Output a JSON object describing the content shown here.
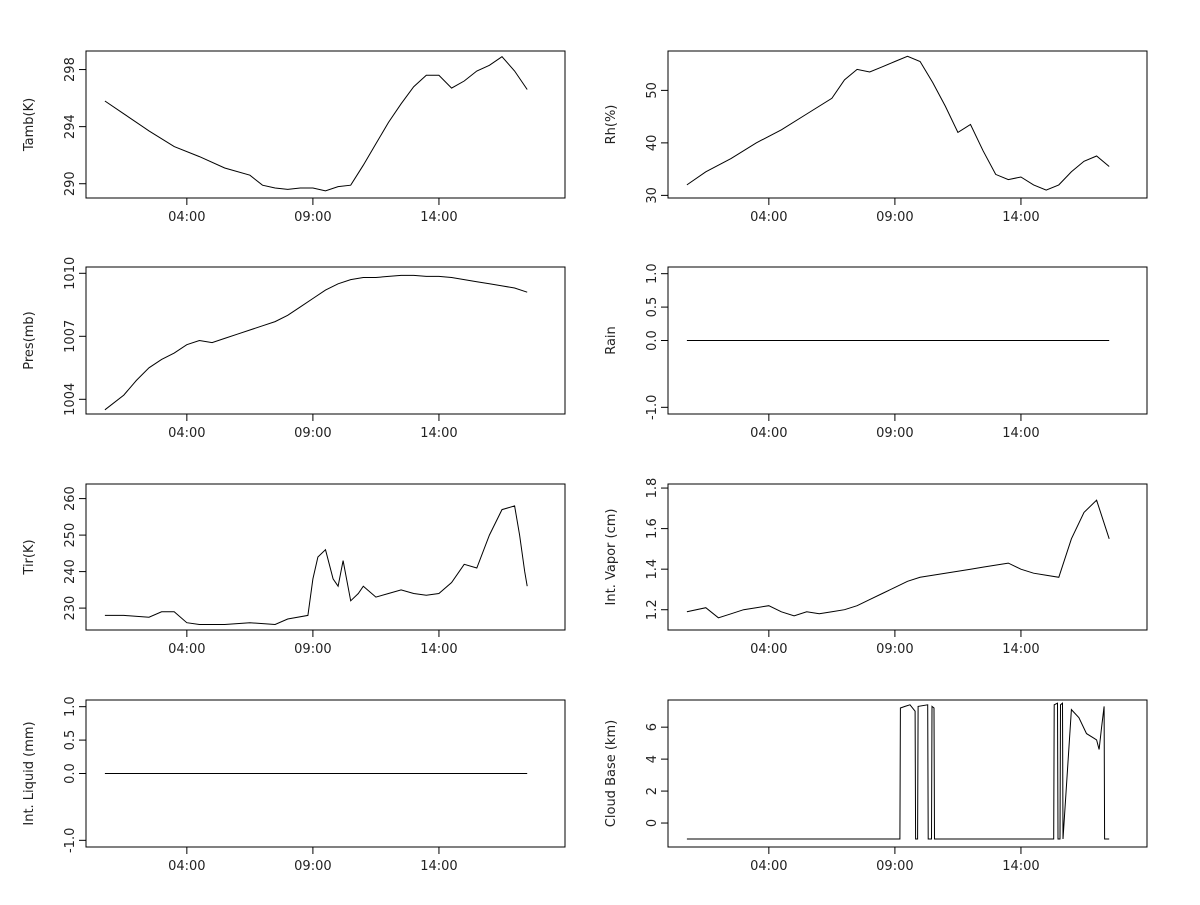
{
  "chart_data": [
    {
      "type": "line",
      "ylabel": "Tamb(K)",
      "xticks": [
        "04:00",
        "09:00",
        "14:00"
      ],
      "xlim": [
        0.0,
        19.0
      ],
      "ylim": [
        289.0,
        299.3
      ],
      "yticks": [
        290,
        294,
        298
      ],
      "series": [
        {
          "x": [
            0.75,
            1.5,
            2.5,
            3.5,
            4.5,
            5.5,
            6.5,
            7.0,
            7.5,
            8.0,
            8.5,
            9.0,
            9.5,
            10.0,
            10.5,
            11.0,
            11.5,
            12.0,
            12.5,
            13.0,
            13.5,
            14.0,
            14.5,
            15.0,
            15.5,
            16.0,
            16.5,
            17.0,
            17.5
          ],
          "y": [
            295.8,
            294.9,
            293.7,
            292.6,
            291.9,
            291.1,
            290.6,
            289.9,
            289.7,
            289.6,
            289.7,
            289.7,
            289.5,
            289.8,
            289.9,
            291.3,
            292.8,
            294.3,
            295.6,
            296.8,
            297.6,
            297.6,
            296.7,
            297.2,
            297.9,
            298.3,
            298.9,
            297.9,
            296.6
          ]
        }
      ]
    },
    {
      "type": "line",
      "ylabel": "Rh(%)",
      "xticks": [
        "04:00",
        "09:00",
        "14:00"
      ],
      "xlim": [
        0.0,
        19.0
      ],
      "ylim": [
        29.5,
        57.5
      ],
      "yticks": [
        30,
        40,
        50
      ],
      "series": [
        {
          "x": [
            0.75,
            1.5,
            2.5,
            3.5,
            4.5,
            5.5,
            6.5,
            7.0,
            7.5,
            8.0,
            8.5,
            9.0,
            9.5,
            10.0,
            10.5,
            11.0,
            11.5,
            12.0,
            12.5,
            13.0,
            13.5,
            14.0,
            14.5,
            15.0,
            15.5,
            16.0,
            16.5,
            17.0,
            17.5
          ],
          "y": [
            32.0,
            34.5,
            37.0,
            40.0,
            42.5,
            45.5,
            48.5,
            52.0,
            54.0,
            53.5,
            54.5,
            55.5,
            56.5,
            55.5,
            51.5,
            47.0,
            42.0,
            43.5,
            38.5,
            34.0,
            33.0,
            33.5,
            32.0,
            31.0,
            32.0,
            34.5,
            36.5,
            37.5,
            35.5
          ]
        }
      ]
    },
    {
      "type": "line",
      "ylabel": "Pres(mb)",
      "xticks": [
        "04:00",
        "09:00",
        "14:00"
      ],
      "xlim": [
        0.0,
        19.0
      ],
      "ylim": [
        1003.3,
        1010.3
      ],
      "yticks": [
        1004,
        1007,
        1010
      ],
      "series": [
        {
          "x": [
            0.75,
            1.5,
            2.0,
            2.5,
            3.0,
            3.5,
            4.0,
            4.5,
            5.0,
            5.5,
            6.0,
            6.5,
            7.0,
            7.5,
            8.0,
            8.5,
            9.0,
            9.5,
            10.0,
            10.5,
            11.0,
            11.5,
            12.0,
            12.5,
            13.0,
            13.5,
            14.0,
            14.5,
            15.0,
            15.5,
            16.0,
            16.5,
            17.0,
            17.5
          ],
          "y": [
            1003.5,
            1004.2,
            1004.9,
            1005.5,
            1005.9,
            1006.2,
            1006.6,
            1006.8,
            1006.7,
            1006.9,
            1007.1,
            1007.3,
            1007.5,
            1007.7,
            1008.0,
            1008.4,
            1008.8,
            1009.2,
            1009.5,
            1009.7,
            1009.8,
            1009.8,
            1009.85,
            1009.9,
            1009.9,
            1009.85,
            1009.85,
            1009.8,
            1009.7,
            1009.6,
            1009.5,
            1009.4,
            1009.3,
            1009.1
          ]
        }
      ]
    },
    {
      "type": "line",
      "ylabel": "Rain",
      "xticks": [
        "04:00",
        "09:00",
        "14:00"
      ],
      "xlim": [
        0.0,
        19.0
      ],
      "ylim": [
        -1.1,
        1.1
      ],
      "yticks": [
        -1.0,
        0.0,
        0.5,
        1.0
      ],
      "ytick_labels": [
        "-1.0",
        "0.0",
        "0.5",
        "1.0"
      ],
      "series": [
        {
          "x": [
            0.75,
            17.5
          ],
          "y": [
            0.0,
            0.0
          ]
        }
      ]
    },
    {
      "type": "line",
      "ylabel": "Tir(K)",
      "xticks": [
        "04:00",
        "09:00",
        "14:00"
      ],
      "xlim": [
        0.0,
        19.0
      ],
      "ylim": [
        224.0,
        264.0
      ],
      "yticks": [
        230,
        240,
        250,
        260
      ],
      "series": [
        {
          "x": [
            0.75,
            1.5,
            2.5,
            3.0,
            3.5,
            4.0,
            4.5,
            5.5,
            6.5,
            7.5,
            8.0,
            8.8,
            9.0,
            9.2,
            9.5,
            9.8,
            10.0,
            10.2,
            10.5,
            10.8,
            11.0,
            11.5,
            12.0,
            12.5,
            13.0,
            13.5,
            14.0,
            14.5,
            15.0,
            15.5,
            16.0,
            16.5,
            17.0,
            17.2,
            17.4,
            17.5
          ],
          "y": [
            228,
            228,
            227.5,
            229,
            229,
            226,
            225.5,
            225.5,
            226,
            225.5,
            227,
            228,
            238,
            244,
            246,
            238,
            236,
            243,
            232,
            234,
            236,
            233,
            234,
            235,
            234,
            233.5,
            234,
            237,
            242,
            241,
            250,
            257,
            258,
            250,
            240,
            236
          ]
        }
      ]
    },
    {
      "type": "line",
      "ylabel": "Int. Vapor (cm)",
      "xticks": [
        "04:00",
        "09:00",
        "14:00"
      ],
      "xlim": [
        0.0,
        19.0
      ],
      "ylim": [
        1.1,
        1.82
      ],
      "yticks": [
        1.2,
        1.4,
        1.6,
        1.8
      ],
      "series": [
        {
          "x": [
            0.75,
            1.5,
            2.0,
            2.5,
            3.0,
            3.5,
            4.0,
            4.5,
            5.0,
            5.5,
            6.0,
            6.5,
            7.0,
            7.5,
            8.0,
            8.5,
            9.0,
            9.5,
            10.0,
            10.5,
            11.0,
            11.5,
            12.0,
            12.5,
            13.0,
            13.5,
            14.0,
            14.5,
            15.0,
            15.5,
            16.0,
            16.5,
            17.0,
            17.5
          ],
          "y": [
            1.19,
            1.21,
            1.16,
            1.18,
            1.2,
            1.21,
            1.22,
            1.19,
            1.17,
            1.19,
            1.18,
            1.19,
            1.2,
            1.22,
            1.25,
            1.28,
            1.31,
            1.34,
            1.36,
            1.37,
            1.38,
            1.39,
            1.4,
            1.41,
            1.42,
            1.43,
            1.4,
            1.38,
            1.37,
            1.36,
            1.55,
            1.68,
            1.74,
            1.55
          ]
        }
      ]
    },
    {
      "type": "line",
      "ylabel": "Int. Liquid (mm)",
      "xticks": [
        "04:00",
        "09:00",
        "14:00"
      ],
      "xlim": [
        0.0,
        19.0
      ],
      "ylim": [
        -1.1,
        1.1
      ],
      "yticks": [
        -1.0,
        0.0,
        0.5,
        1.0
      ],
      "ytick_labels": [
        "-1.0",
        "0.0",
        "0.5",
        "1.0"
      ],
      "series": [
        {
          "x": [
            0.75,
            17.5
          ],
          "y": [
            0.0,
            0.0
          ]
        }
      ]
    },
    {
      "type": "line",
      "ylabel": "Cloud Base (km)",
      "xticks": [
        "04:00",
        "09:00",
        "14:00"
      ],
      "xlim": [
        0.0,
        19.0
      ],
      "ylim": [
        -1.5,
        7.7
      ],
      "yticks": [
        0,
        2,
        4,
        6
      ],
      "series": [
        {
          "x": [
            0.75,
            9.2,
            9.22,
            9.4,
            9.6,
            9.8,
            9.82,
            9.9,
            9.92,
            10.3,
            10.32,
            10.45,
            10.47,
            10.55,
            10.57,
            15.3,
            15.32,
            15.45,
            15.47,
            15.55,
            15.57,
            15.65,
            15.67,
            16.0,
            16.3,
            16.6,
            16.9,
            17.0,
            17.1,
            17.2,
            17.3,
            17.32,
            17.5
          ],
          "y": [
            -1,
            -1,
            7.2,
            7.3,
            7.4,
            7.0,
            -1,
            -1,
            7.3,
            7.4,
            -1,
            -1,
            7.3,
            7.2,
            -1,
            -1,
            7.4,
            7.5,
            -1,
            -1,
            7.4,
            7.5,
            -1,
            7.1,
            6.6,
            5.6,
            5.3,
            5.2,
            4.6,
            6.0,
            7.3,
            -1,
            -1
          ]
        }
      ]
    }
  ]
}
